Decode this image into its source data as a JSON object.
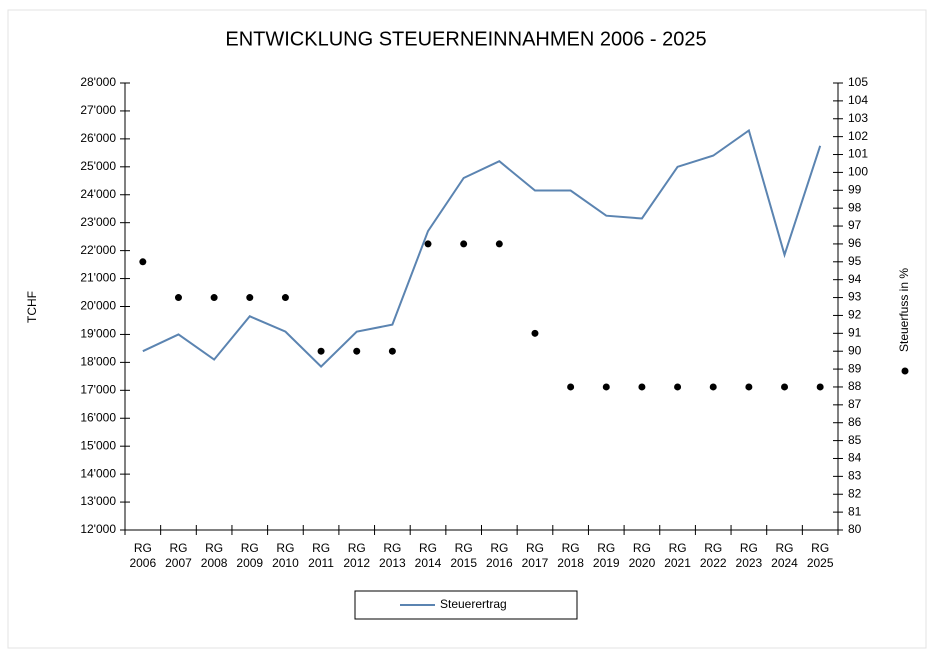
{
  "chart_data": {
    "type": "line",
    "title": "ENTWICKLUNG STEUERNEINNAHMEN 2006 - 2025",
    "ylabel": "TCHF",
    "y2label": "Steuerfuss in %",
    "categories": [
      "RG 2006",
      "RG 2007",
      "RG 2008",
      "RG 2009",
      "RG 2010",
      "RG 2011",
      "RG 2012",
      "RG 2013",
      "RG 2014",
      "RG 2015",
      "RG 2016",
      "RG 2017",
      "RG 2018",
      "RG 2019",
      "RG 2020",
      "RG 2021",
      "RG 2022",
      "RG 2023",
      "RG 2024",
      "RG 2025"
    ],
    "series": [
      {
        "name": "Steuerertrag",
        "type": "line",
        "color": "#5b84b1",
        "values": [
          18400,
          19000,
          18100,
          19650,
          19100,
          17850,
          19100,
          19350,
          22700,
          24600,
          25200,
          24150,
          24150,
          23250,
          23150,
          25000,
          25400,
          26300,
          21850,
          25750
        ]
      },
      {
        "name": "Steuerfuss in %",
        "type": "scatter",
        "axis": "y2",
        "color": "#000000",
        "values": [
          95,
          93,
          93,
          93,
          93,
          90,
          90,
          90,
          96,
          96,
          96,
          91,
          88,
          88,
          88,
          88,
          88,
          88,
          88,
          88
        ]
      }
    ],
    "ylim": [
      12000,
      28000
    ],
    "yticks": [
      {
        "value": 12000,
        "label": "12'000"
      },
      {
        "value": 13000,
        "label": "13'000"
      },
      {
        "value": 14000,
        "label": "14'000"
      },
      {
        "value": 15000,
        "label": "15'000"
      },
      {
        "value": 16000,
        "label": "16'000"
      },
      {
        "value": 17000,
        "label": "17'000"
      },
      {
        "value": 18000,
        "label": "18'000"
      },
      {
        "value": 19000,
        "label": "19'000"
      },
      {
        "value": 20000,
        "label": "20'000"
      },
      {
        "value": 21000,
        "label": "21'000"
      },
      {
        "value": 22000,
        "label": "22'000"
      },
      {
        "value": 23000,
        "label": "23'000"
      },
      {
        "value": 24000,
        "label": "24'000"
      },
      {
        "value": 25000,
        "label": "25'000"
      },
      {
        "value": 26000,
        "label": "26'000"
      },
      {
        "value": 27000,
        "label": "27'000"
      },
      {
        "value": 28000,
        "label": "28'000"
      }
    ],
    "y2lim": [
      80,
      105
    ],
    "y2ticks": [
      80,
      81,
      82,
      83,
      84,
      85,
      86,
      87,
      88,
      89,
      90,
      91,
      92,
      93,
      94,
      95,
      96,
      97,
      98,
      99,
      100,
      101,
      102,
      103,
      104,
      105
    ],
    "grid": false,
    "legend": "bottom"
  }
}
